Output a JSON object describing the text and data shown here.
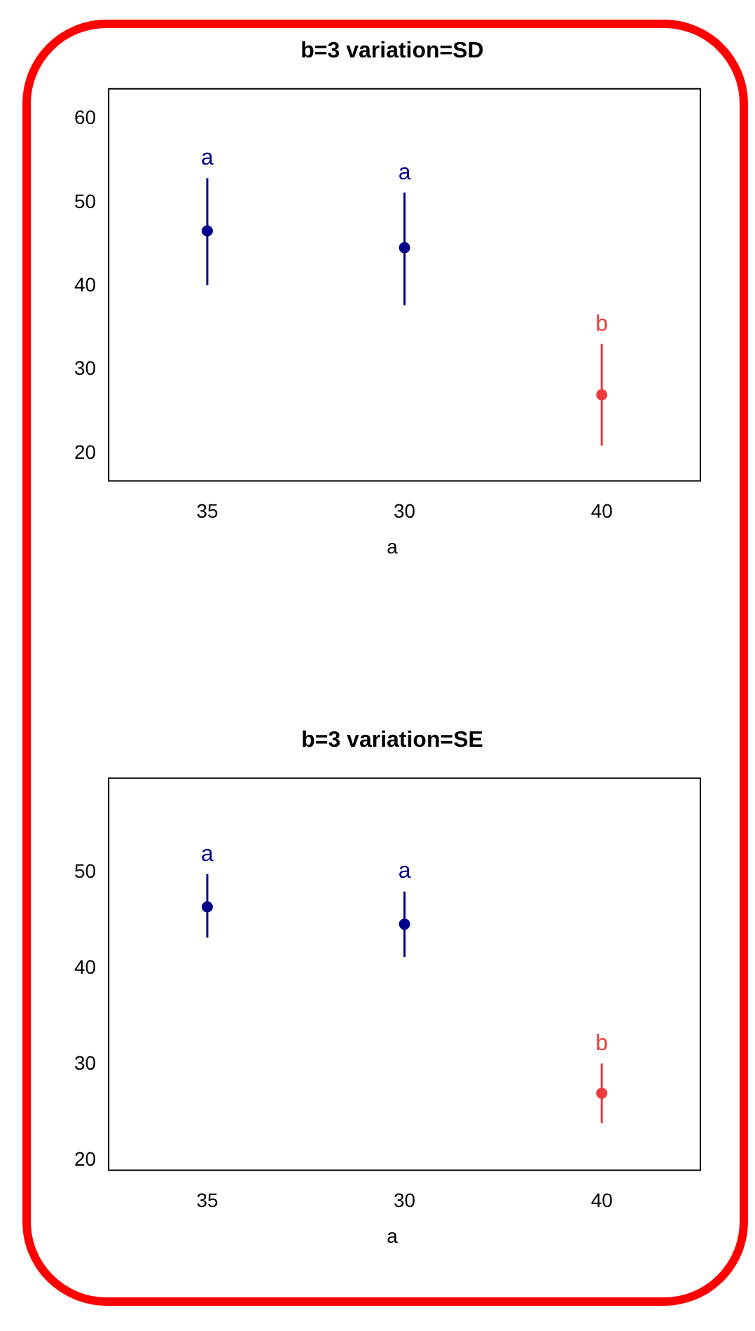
{
  "chart_data": [
    {
      "type": "scatter",
      "title": "b=3 variation=SD",
      "xlabel": "a",
      "categories": [
        "35",
        "30",
        "40"
      ],
      "series": [
        {
          "colors": [
            "#00008b",
            "#00008b",
            "#ee3b3b"
          ],
          "values": [
            46.6,
            44.6,
            27.0
          ],
          "errors": [
            [
              40.1,
              52.9
            ],
            [
              37.7,
              51.2
            ],
            [
              20.9,
              33.1
            ]
          ]
        }
      ],
      "ylim": [
        16.7,
        63.6
      ],
      "yticks": [
        20,
        30,
        40,
        50,
        60
      ],
      "marker": "circle",
      "grid": false,
      "legend": false,
      "annotations": [
        "a",
        "a",
        "b"
      ]
    },
    {
      "type": "scatter",
      "title": "b=3 variation=SE",
      "xlabel": "a",
      "categories": [
        "35",
        "30",
        "40"
      ],
      "series": [
        {
          "colors": [
            "#00008b",
            "#00008b",
            "#ee3b3b"
          ],
          "values": [
            46.4,
            44.6,
            27.0
          ],
          "errors": [
            [
              43.2,
              49.8
            ],
            [
              41.2,
              48.0
            ],
            [
              23.9,
              30.1
            ]
          ]
        }
      ],
      "ylim": [
        19.0,
        59.8
      ],
      "yticks": [
        20,
        30,
        40,
        50
      ],
      "marker": "circle",
      "grid": false,
      "legend": false,
      "annotations": [
        "a",
        "a",
        "b"
      ]
    }
  ]
}
